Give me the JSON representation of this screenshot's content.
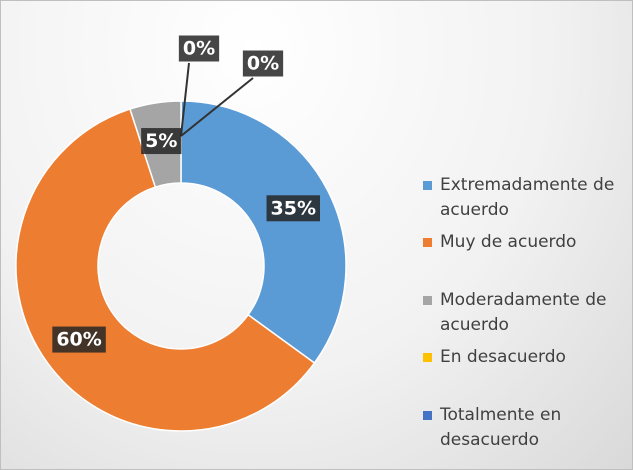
{
  "chart_data": {
    "type": "donut",
    "categories": [
      "Extremadamente de acuerdo",
      "Muy de acuerdo",
      "Moderadamente de acuerdo",
      "En desacuerdo",
      "Totalmente en desacuerdo"
    ],
    "values": [
      35,
      60,
      5,
      0,
      0
    ],
    "value_labels": [
      "35%",
      "60%",
      "5%",
      "0%",
      "0%"
    ],
    "colors": [
      "#5b9bd5",
      "#ed7d31",
      "#a5a5a5",
      "#ffc000",
      "#4472c4"
    ],
    "legend": "right"
  }
}
